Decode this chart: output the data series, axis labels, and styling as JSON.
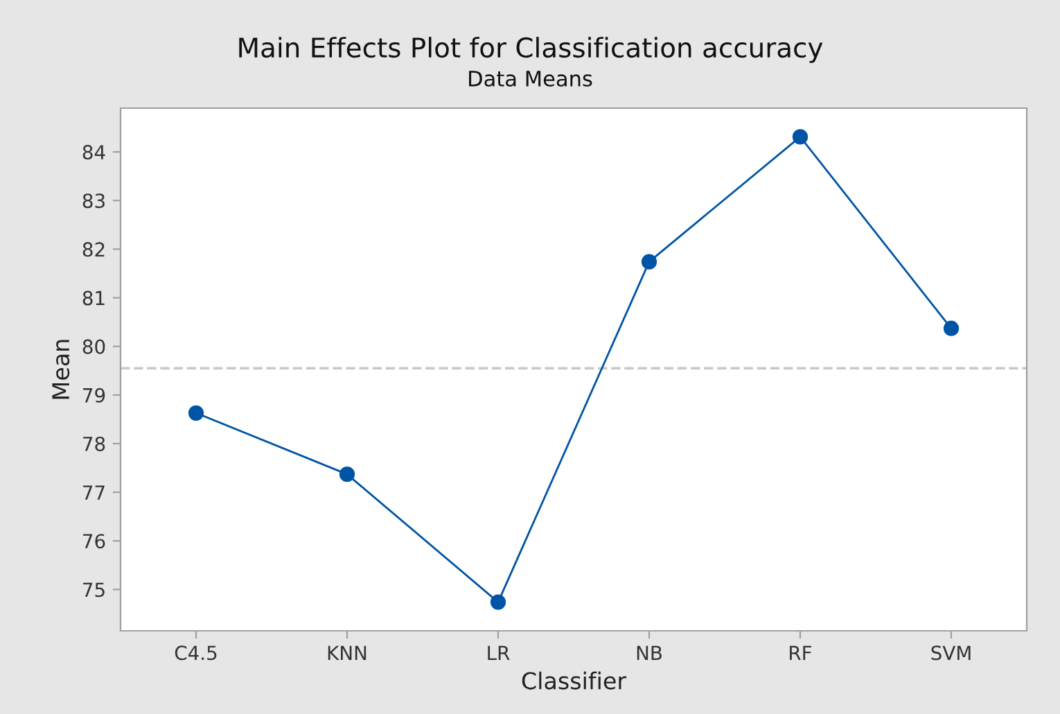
{
  "chart_data": {
    "type": "line",
    "title": "Main Effects Plot for Classification accuracy",
    "subtitle": "Data Means",
    "xlabel": "Classifier",
    "ylabel": "Mean",
    "categories": [
      "C4.5",
      "KNN",
      "LR",
      "NB",
      "RF",
      "SVM"
    ],
    "series": [
      {
        "color": "#0054a6",
        "values": [
          78.63,
          77.37,
          74.74,
          81.74,
          84.31,
          80.37
        ]
      }
    ],
    "ylim": [
      74.15,
      84.9
    ],
    "yticks": [
      75,
      76,
      77,
      78,
      79,
      80,
      81,
      82,
      83,
      84
    ],
    "ref_lines": [
      {
        "axis": "y",
        "value": 79.55,
        "color": "#c8c8c8",
        "line_style": "dashed"
      }
    ],
    "marker": "circle",
    "line_style": "solid",
    "grid": false,
    "legend": false
  }
}
